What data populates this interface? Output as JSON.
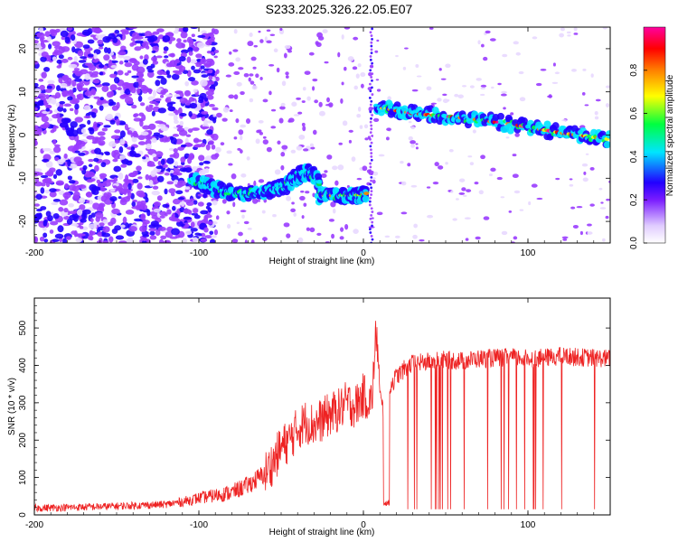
{
  "title": "S233.2025.326.22.05.E07",
  "chart_data": [
    {
      "type": "heatmap",
      "xlabel": "Height of straight line (km)",
      "ylabel": "Frequency (Hz)",
      "xlim": [
        -200,
        150
      ],
      "ylim": [
        -25,
        25
      ],
      "x_ticks": [
        -200,
        -100,
        0,
        100
      ],
      "y_ticks": [
        -20,
        -10,
        0,
        10,
        20
      ],
      "colorbar": {
        "label": "Normalized spectral amplitude",
        "range": [
          0,
          1
        ],
        "ticks": [
          0.0,
          0.2,
          0.4,
          0.6,
          0.8
        ],
        "tick_labels": [
          "0.0",
          "0.2",
          "0.4",
          "0.6",
          "0.8"
        ],
        "colormap": [
          "#ffffff",
          "#e8d8ff",
          "#9a3cff",
          "#2200ff",
          "#00e5ff",
          "#00ff40",
          "#ffff00",
          "#ff8000",
          "#ff0000",
          "#ff00a0"
        ]
      },
      "ridge_segments": [
        {
          "x": [
            -105,
            -90,
            -75,
            -60,
            -48,
            -40,
            -33,
            -27
          ],
          "y": [
            -10,
            -12.5,
            -13.5,
            -13,
            -12,
            -9.5,
            -8.5,
            -11
          ],
          "peak_amplitude": 0.45
        },
        {
          "x": [
            -27,
            -15,
            -5,
            2
          ],
          "y": [
            -14,
            -14,
            -14,
            -13.5
          ],
          "peak_amplitude": 0.8
        },
        {
          "x": [
            8,
            30,
            60,
            90,
            120,
            150
          ],
          "y": [
            6.5,
            5,
            4,
            2.5,
            0.5,
            -1
          ],
          "peak_amplitude": 0.95
        }
      ],
      "notes": "scattered low-amplitude noise dominates x < -100"
    },
    {
      "type": "line",
      "xlabel": "Height of straight line (km)",
      "ylabel": "SNR (10 * v/v)",
      "xlim": [
        -200,
        150
      ],
      "ylim": [
        0,
        580
      ],
      "x_ticks": [
        -200,
        -100,
        0,
        100
      ],
      "y_ticks": [
        0,
        100,
        200,
        300,
        400,
        500
      ],
      "color": "#ee2222",
      "series": [
        {
          "x": [
            -200,
            -180,
            -160,
            -140,
            -120,
            -110,
            -100,
            -90,
            -80,
            -70,
            -60,
            -55,
            -50,
            -45,
            -40,
            -35,
            -30,
            -25,
            -20,
            -15,
            -10,
            -5,
            0,
            5,
            8,
            10,
            12,
            13,
            15,
            17,
            20,
            25,
            30,
            40,
            50,
            60,
            70,
            80,
            90,
            100,
            110,
            120,
            130,
            140,
            150
          ],
          "values": [
            18,
            20,
            22,
            25,
            28,
            35,
            45,
            52,
            60,
            80,
            110,
            140,
            180,
            200,
            230,
            250,
            240,
            255,
            270,
            280,
            300,
            290,
            320,
            300,
            500,
            320,
            280,
            30,
            330,
            350,
            370,
            390,
            405,
            410,
            415,
            412,
            418,
            420,
            422,
            418,
            420,
            425,
            422,
            420,
            418
          ],
          "spikes_down_to": 15,
          "spike_x_range": [
            25,
            150
          ]
        }
      ]
    }
  ]
}
